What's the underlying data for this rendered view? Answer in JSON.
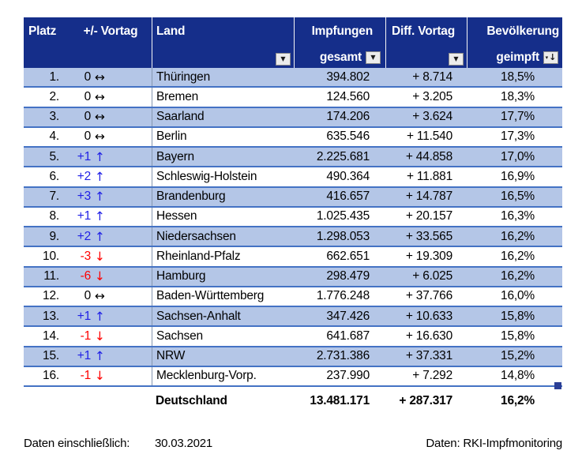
{
  "table": {
    "columns": [
      {
        "label": "Platz"
      },
      {
        "label": "+/- Vortag"
      },
      {
        "label": "Land",
        "filter": true
      },
      {
        "label": "Impfungen",
        "label2": "gesamt",
        "filter": true
      },
      {
        "label": "Diff. Vortag",
        "filter": true
      },
      {
        "label": "Bevölkerung",
        "label2": "geimpft",
        "filter": true,
        "sorted": "descending"
      }
    ],
    "rows": [
      {
        "platz": "1.",
        "change": "0",
        "dir": "same",
        "land": "Thüringen",
        "total": "394.802",
        "diff": "+ 8.714",
        "pct": "18,5%"
      },
      {
        "platz": "2.",
        "change": "0",
        "dir": "same",
        "land": "Bremen",
        "total": "124.560",
        "diff": "+ 3.205",
        "pct": "18,3%"
      },
      {
        "platz": "3.",
        "change": "0",
        "dir": "same",
        "land": "Saarland",
        "total": "174.206",
        "diff": "+ 3.624",
        "pct": "17,7%"
      },
      {
        "platz": "4.",
        "change": "0",
        "dir": "same",
        "land": "Berlin",
        "total": "635.546",
        "diff": "+ 11.540",
        "pct": "17,3%"
      },
      {
        "platz": "5.",
        "change": "+1",
        "dir": "up",
        "land": "Bayern",
        "total": "2.225.681",
        "diff": "+ 44.858",
        "pct": "17,0%"
      },
      {
        "platz": "6.",
        "change": "+2",
        "dir": "up",
        "land": "Schleswig-Holstein",
        "total": "490.364",
        "diff": "+ 11.881",
        "pct": "16,9%"
      },
      {
        "platz": "7.",
        "change": "+3",
        "dir": "up",
        "land": "Brandenburg",
        "total": "416.657",
        "diff": "+ 14.787",
        "pct": "16,5%"
      },
      {
        "platz": "8.",
        "change": "+1",
        "dir": "up",
        "land": "Hessen",
        "total": "1.025.435",
        "diff": "+ 20.157",
        "pct": "16,3%"
      },
      {
        "platz": "9.",
        "change": "+2",
        "dir": "up",
        "land": "Niedersachsen",
        "total": "1.298.053",
        "diff": "+ 33.565",
        "pct": "16,2%"
      },
      {
        "platz": "10.",
        "change": "-3",
        "dir": "down",
        "land": "Rheinland-Pfalz",
        "total": "662.651",
        "diff": "+ 19.309",
        "pct": "16,2%"
      },
      {
        "platz": "11.",
        "change": "-6",
        "dir": "down",
        "land": "Hamburg",
        "total": "298.479",
        "diff": "+ 6.025",
        "pct": "16,2%"
      },
      {
        "platz": "12.",
        "change": "0",
        "dir": "same",
        "land": "Baden-Württemberg",
        "total": "1.776.248",
        "diff": "+ 37.766",
        "pct": "16,0%"
      },
      {
        "platz": "13.",
        "change": "+1",
        "dir": "up",
        "land": "Sachsen-Anhalt",
        "total": "347.426",
        "diff": "+ 10.633",
        "pct": "15,8%"
      },
      {
        "platz": "14.",
        "change": "-1",
        "dir": "down",
        "land": "Sachsen",
        "total": "641.687",
        "diff": "+ 16.630",
        "pct": "15,8%"
      },
      {
        "platz": "15.",
        "change": "+1",
        "dir": "up",
        "land": "NRW",
        "total": "2.731.386",
        "diff": "+ 37.331",
        "pct": "15,2%"
      },
      {
        "platz": "16.",
        "change": "-1",
        "dir": "down",
        "land": "Mecklenburg-Vorp.",
        "total": "237.990",
        "diff": "+ 7.292",
        "pct": "14,8%"
      }
    ],
    "total_row": {
      "land": "Deutschland",
      "total": "13.481.171",
      "diff": "+ 287.317",
      "pct": "16,2%"
    }
  },
  "icons": {
    "up": "↑",
    "down": "↓",
    "same": "↔",
    "filter": "▼",
    "sort_desc": "↓",
    "sort_mini": "▾"
  },
  "colors": {
    "header_bg": "#152E8A",
    "header_text": "#FFFFFF",
    "row_alt_bg": "#B4C6E7",
    "row_bg": "#FFFFFF",
    "row_border": "#4472C4",
    "column_divider": "#8496B0",
    "change_up": "#1F1FE6",
    "change_down": "#FF0000",
    "change_same": "#000000",
    "corner_handle": "#2B3F96"
  },
  "footer": {
    "label": "Daten einschließlich:",
    "date": "30.03.2021",
    "source": "Daten: RKI-Impfmonitoring"
  }
}
